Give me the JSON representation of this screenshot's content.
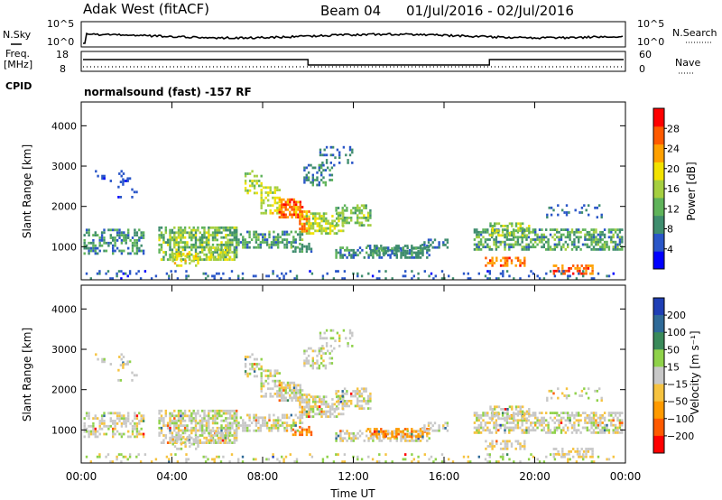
{
  "header": {
    "station": "Adak West (fitACF)",
    "beam": "Beam 04",
    "dates": "01/Jul/2016 - 02/Jul/2016"
  },
  "top_strips": {
    "nsky_label": "N.Sky",
    "nsearch_label": "N.Search",
    "noise_ticks": [
      "10^5",
      "10^0"
    ],
    "freq_label_1": "Freq.",
    "freq_label_2": "[MHz]",
    "freq_ticks": [
      "18",
      "8"
    ],
    "nave_label": "Nave",
    "nave_ticks": [
      "60",
      "0"
    ],
    "cpid_label": "CPID",
    "cpid_text": "normalsound (fast) -157 RF"
  },
  "chart_data": [
    {
      "type": "heatmap",
      "parameter": "power",
      "ylabel": "Slant Range [km]",
      "xlabel": "",
      "x_ticks": [
        "00:00",
        "04:00",
        "08:00",
        "12:00",
        "16:00",
        "20:00",
        "00:00"
      ],
      "x_range_hours": [
        0,
        24
      ],
      "y_ticks": [
        1000,
        2000,
        3000,
        4000
      ],
      "ylim": [
        180,
        4590
      ],
      "colorbar": {
        "label": "Power [dB]",
        "ticks": [
          4,
          8,
          12,
          16,
          20,
          24,
          28
        ],
        "range": [
          0,
          32
        ],
        "colors": [
          "#0000ff",
          "#2a56c8",
          "#3f8d6e",
          "#5fb35a",
          "#a5cf40",
          "#f2e200",
          "#ffa000",
          "#ff5a00",
          "#ff0000"
        ]
      }
    },
    {
      "type": "heatmap",
      "parameter": "velocity",
      "ylabel": "Slant Range [km]",
      "xlabel": "Time UT",
      "x_ticks": [
        "00:00",
        "04:00",
        "08:00",
        "12:00",
        "16:00",
        "20:00",
        "00:00"
      ],
      "x_range_hours": [
        0,
        24
      ],
      "y_ticks": [
        1000,
        2000,
        3000,
        4000
      ],
      "ylim": [
        180,
        4590
      ],
      "colorbar": {
        "label": "Velocity [m s⁻¹]",
        "ticks": [
          200,
          100,
          50,
          15,
          -15,
          -50,
          -100,
          -200
        ],
        "colors": [
          "#1f3fb5",
          "#2f6a98",
          "#3a8a5a",
          "#8fd24a",
          "#c8c8c8",
          "#f6c340",
          "#ff9a00",
          "#ff5a00",
          "#ff0000"
        ]
      }
    }
  ]
}
